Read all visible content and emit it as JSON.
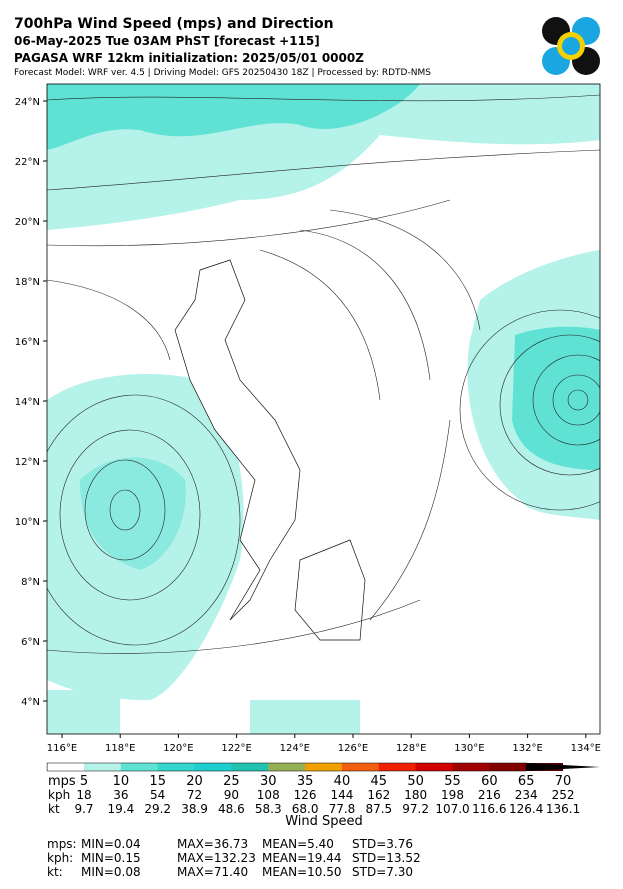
{
  "header": {
    "title": "700hPa Wind Speed (mps) and Direction",
    "line2": "06-May-2025 Tue 03AM PhST [forecast +115]",
    "line3": "PAGASA WRF 12km initialization: 2025/05/01 0000Z",
    "line4": "Forecast Model: WRF ver. 4.5 | Driving Model: GFS 20250430 18Z | Processed by: RDTD-NMS"
  },
  "map": {
    "lat_labels": [
      "24°N",
      "22°N",
      "20°N",
      "18°N",
      "16°N",
      "14°N",
      "12°N",
      "10°N",
      "8°N",
      "6°N",
      "4°N"
    ],
    "lon_labels": [
      "116°E",
      "118°E",
      "120°E",
      "122°E",
      "124°E",
      "126°E",
      "128°E",
      "130°E",
      "132°E",
      "134°E"
    ]
  },
  "colorbar": {
    "label": "Wind Speed",
    "colors": [
      "#ffffff",
      "#b4f2ea",
      "#5fe2d4",
      "#35d6cc",
      "#1ecfd0",
      "#22c2b2",
      "#94b054",
      "#f0a000",
      "#f06010",
      "#f02000",
      "#d00000",
      "#a00000",
      "#800000",
      "#540000",
      "#000000"
    ],
    "rows": [
      {
        "unit": "mps",
        "values": [
          "5",
          "10",
          "15",
          "20",
          "25",
          "30",
          "35",
          "40",
          "45",
          "50",
          "55",
          "60",
          "65",
          "70"
        ]
      },
      {
        "unit": "kph",
        "values": [
          "18",
          "36",
          "54",
          "72",
          "90",
          "108",
          "126",
          "144",
          "162",
          "180",
          "198",
          "216",
          "234",
          "252"
        ]
      },
      {
        "unit": "kt",
        "values": [
          "9.7",
          "19.4",
          "29.2",
          "38.9",
          "48.6",
          "58.3",
          "68.0",
          "77.8",
          "87.5",
          "97.2",
          "107.0",
          "116.6",
          "126.4",
          "136.1"
        ]
      }
    ]
  },
  "stats": [
    [
      "mps:",
      "MIN=0.04",
      "MAX=36.73",
      "MEAN=5.40",
      "STD=3.76"
    ],
    [
      "kph:",
      "MIN=0.15",
      "MAX=132.23",
      "MEAN=19.44",
      "STD=13.52"
    ],
    [
      "kt:",
      "MIN=0.08",
      "MAX=71.40",
      "MEAN=10.50",
      "STD=7.30"
    ]
  ]
}
